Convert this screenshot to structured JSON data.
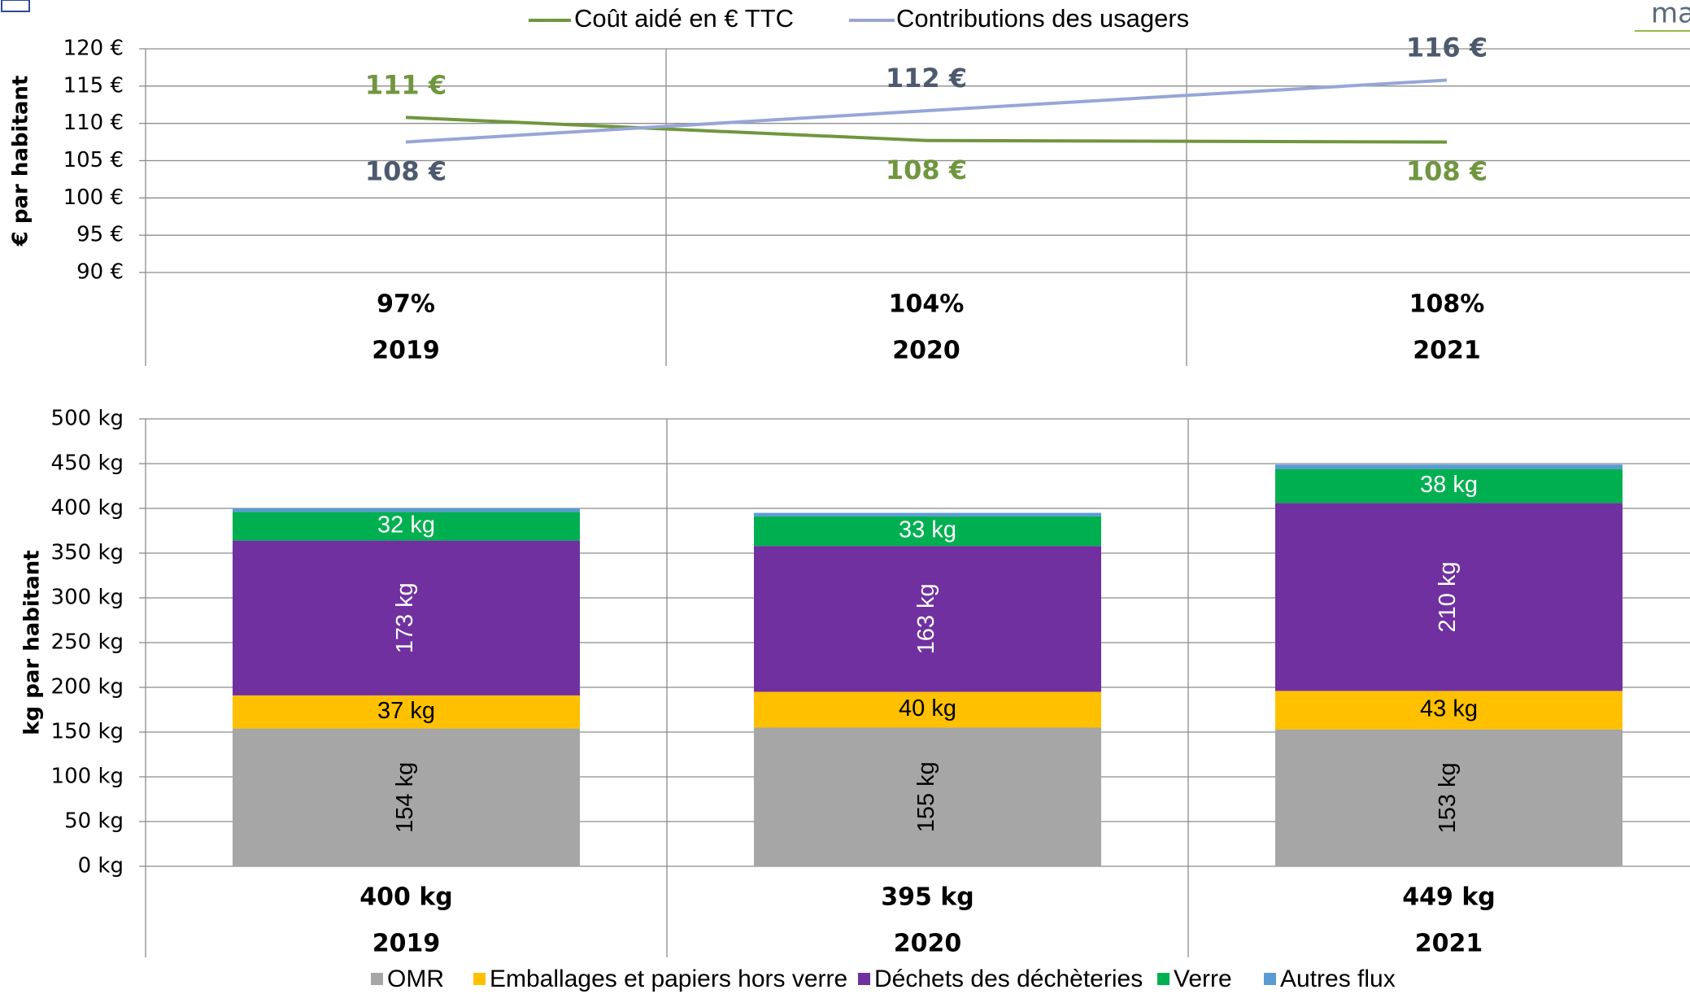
{
  "logo": "mad",
  "chart_data": [
    {
      "type": "line",
      "ylabel": "€ par habitant",
      "categories": [
        "2019",
        "2020",
        "2021"
      ],
      "series": [
        {
          "name": "Coût aidé en € TTC",
          "color": "#70963f",
          "values": [
            110.8,
            107.7,
            107.5
          ],
          "value_labels": [
            "111 €",
            "108 €",
            "108 €"
          ]
        },
        {
          "name": "Contributions des usagers",
          "color": "#97a6d6",
          "label_color": "#4d5a6e",
          "values": [
            107.5,
            111.7,
            115.8
          ],
          "value_labels": [
            "108 €",
            "112 €",
            "116 €"
          ]
        }
      ],
      "ratios": [
        97,
        104,
        108
      ],
      "ratio_labels": [
        "97%",
        "104%",
        "108%"
      ],
      "ylim": [
        90,
        120
      ],
      "yticks": [
        {
          "value": 90,
          "label": "90 €"
        },
        {
          "value": 95,
          "label": "95 €"
        },
        {
          "value": 100,
          "label": "100 €"
        },
        {
          "value": 105,
          "label": "105 €"
        },
        {
          "value": 110,
          "label": "110 €"
        },
        {
          "value": 115,
          "label": "115 €"
        },
        {
          "value": 120,
          "label": "120 €"
        }
      ],
      "grid": true
    },
    {
      "type": "stacked-bar",
      "ylabel": "kg par habitant",
      "categories": [
        "2019",
        "2020",
        "2021"
      ],
      "series": [
        {
          "name": "OMR",
          "color": "#a6a6a6",
          "label_color": "#000000",
          "values": [
            154,
            155,
            153
          ],
          "value_labels": [
            "154 kg",
            "155 kg",
            "153 kg"
          ]
        },
        {
          "name": "Emballages et papiers hors verre",
          "color": "#ffc000",
          "label_color": "#000000",
          "values": [
            37,
            40,
            43
          ],
          "value_labels": [
            "37 kg",
            "40 kg",
            "43 kg"
          ]
        },
        {
          "name": "Déchets des déchèteries",
          "color": "#7030a0",
          "label_color": "#ffffff",
          "values": [
            173,
            163,
            210
          ],
          "value_labels": [
            "173 kg",
            "163 kg",
            "210 kg"
          ]
        },
        {
          "name": "Verre",
          "color": "#00b050",
          "label_color": "#ffffff",
          "values": [
            32,
            33,
            38
          ],
          "value_labels": [
            "32 kg",
            "33 kg",
            "38 kg"
          ]
        },
        {
          "name": "Autres flux",
          "color": "#5b9bd5",
          "values": [
            4,
            4,
            5
          ]
        }
      ],
      "totals": [
        400,
        395,
        449
      ],
      "total_labels": [
        "400 kg",
        "395 kg",
        "449 kg"
      ],
      "ylim": [
        0,
        500
      ],
      "yticks": [
        {
          "value": 0,
          "label": "0 kg"
        },
        {
          "value": 50,
          "label": "50 kg"
        },
        {
          "value": 100,
          "label": "100 kg"
        },
        {
          "value": 150,
          "label": "150 kg"
        },
        {
          "value": 200,
          "label": "200 kg"
        },
        {
          "value": 250,
          "label": "250 kg"
        },
        {
          "value": 300,
          "label": "300 kg"
        },
        {
          "value": 350,
          "label": "350 kg"
        },
        {
          "value": 400,
          "label": "400 kg"
        },
        {
          "value": 450,
          "label": "450 kg"
        },
        {
          "value": 500,
          "label": "500 kg"
        }
      ],
      "grid": true
    }
  ]
}
